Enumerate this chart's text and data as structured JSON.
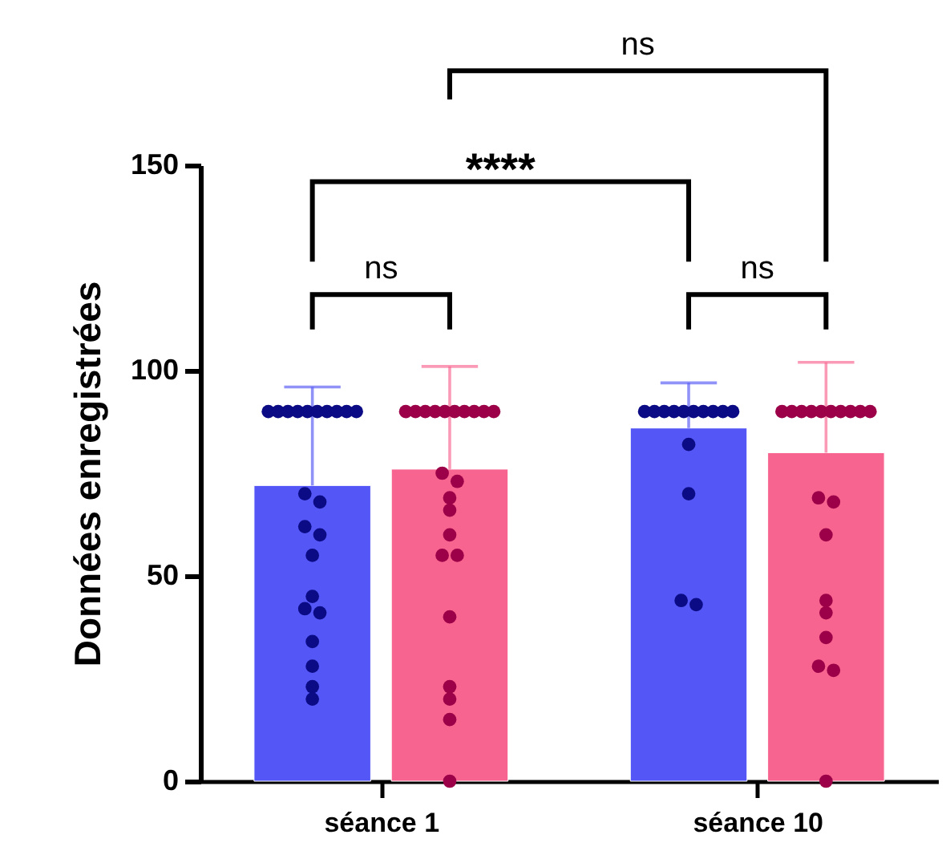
{
  "chart_data": {
    "type": "bar",
    "ylabel": "Données enregistrées",
    "categories": [
      "séance 1",
      "séance 10"
    ],
    "ylim": [
      0,
      150
    ],
    "yticks": [
      0,
      50,
      100,
      150
    ],
    "grid": false,
    "marker": "circle",
    "series": [
      {
        "color": "#5457f5",
        "values": [
          72,
          86
        ],
        "errors": [
          [
            72,
            96
          ],
          [
            86,
            97
          ]
        ]
      },
      {
        "color": "#f7648f",
        "values": [
          76,
          80
        ],
        "errors": [
          [
            76,
            101
          ],
          [
            80,
            102
          ]
        ]
      },
      {
        "type": "scatter",
        "color": "#0b0b85",
        "x": [
          "séance 1",
          "séance 1",
          "séance 1",
          "séance 1",
          "séance 1",
          "séance 1",
          "séance 1",
          "séance 1",
          "séance 1",
          "séance 1",
          "séance 1",
          "séance 1",
          "séance 1",
          "séance 1",
          "séance 1",
          "séance 1",
          "séance 1",
          "séance 1",
          "séance 1",
          "séance 1",
          "séance 1",
          "séance 1",
          "séance 10",
          "séance 10",
          "séance 10",
          "séance 10",
          "séance 10",
          "séance 10",
          "séance 10",
          "séance 10",
          "séance 10",
          "séance 10",
          "séance 10",
          "séance 10",
          "séance 10",
          "séance 10"
        ],
        "values": [
          90,
          90,
          90,
          90,
          90,
          90,
          90,
          90,
          90,
          90,
          70,
          68,
          62,
          60,
          55,
          45,
          42,
          41,
          34,
          28,
          23,
          20,
          90,
          90,
          90,
          90,
          90,
          90,
          90,
          90,
          90,
          90,
          82,
          70,
          44,
          43
        ]
      },
      {
        "type": "scatter",
        "color": "#9c0048",
        "x": [
          "séance 1",
          "séance 1",
          "séance 1",
          "séance 1",
          "séance 1",
          "séance 1",
          "séance 1",
          "séance 1",
          "séance 1",
          "séance 1",
          "séance 1",
          "séance 1",
          "séance 1",
          "séance 1",
          "séance 1",
          "séance 1",
          "séance 1",
          "séance 1",
          "séance 1",
          "séance 1",
          "séance 1",
          "séance 1",
          "séance 10",
          "séance 10",
          "séance 10",
          "séance 10",
          "séance 10",
          "séance 10",
          "séance 10",
          "séance 10",
          "séance 10",
          "séance 10",
          "séance 10",
          "séance 10",
          "séance 10",
          "séance 10",
          "séance 10",
          "séance 10",
          "séance 10",
          "séance 10",
          "séance 10"
        ],
        "values": [
          90,
          90,
          90,
          90,
          90,
          90,
          90,
          90,
          90,
          90,
          75,
          73,
          69,
          66,
          60,
          55,
          55,
          40,
          23,
          20,
          15,
          0,
          90,
          90,
          90,
          90,
          90,
          90,
          90,
          90,
          90,
          90,
          69,
          68,
          60,
          44,
          41,
          35,
          28,
          27,
          0
        ]
      }
    ],
    "annotations": [
      "ns",
      "****",
      "ns",
      "ns"
    ]
  }
}
